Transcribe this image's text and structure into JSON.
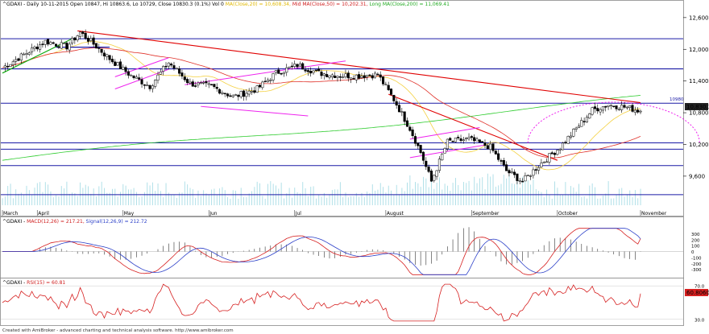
{
  "header": {
    "symbol": "^GDAXI",
    "info": "- Daily 10-11-2015 Open 10847, Hi 10863.6, Lo 10729, Close 10830.3 (0.1%) Vol 0",
    "ma_short": "MA(Close,20) = 10,608.34,",
    "ma_mid": "Mid MA(Close,50) = 10,202.31,",
    "ma_long": "Long MA(Close,200) = 11,069.41"
  },
  "macd_header": {
    "symbol": "^GDAXI - ",
    "macd": "MACD(12,26) = 217.21,",
    "signal": "Signal(12,26,9) = 212.72"
  },
  "rsi_header": {
    "symbol": "^GDAXI - ",
    "rsi": "RSI(15) = 60.81"
  },
  "price_tag": "10,830.3",
  "level_tag": "10980",
  "rsi_tag": "60.8060",
  "footer": "Created with AmiBroker - advanced charting and technical analysis software. http://www.amibroker.com",
  "colors": {
    "up": "#ffffff",
    "down": "#000000",
    "ma20": "#f4d03f",
    "ma50": "#e0322a",
    "ma200": "#2ecc2e",
    "trend_red": "#e00000",
    "channel_magenta": "#ee22ee",
    "support_blue": "#1a1aa6",
    "green_line": "#11aa11",
    "macd": "#2b3fc8",
    "signal": "#d62020",
    "rsi": "#d62020",
    "volume": "#a9dde6"
  },
  "chart_data": [
    {
      "type": "candlestick",
      "title": "^GDAXI - Daily 10-11-2015",
      "ylabel": "",
      "ylim": [
        9050,
        12750
      ],
      "y_ticks": [
        9600,
        10200,
        10800,
        11400,
        12000,
        12600
      ],
      "months": [
        "March",
        "April",
        "May",
        "Jun",
        "Jul",
        "August",
        "September",
        "October",
        "November"
      ],
      "horizontal_levels": [
        12200,
        11630,
        10980,
        10230,
        10110,
        9800,
        9250
      ],
      "series": [
        {
          "name": "MA(Close,20)",
          "value_last": 10608.34
        },
        {
          "name": "Mid MA(Close,50)",
          "value_last": 10202.31
        },
        {
          "name": "Long MA(Close,200)",
          "value_last": 11069.41
        }
      ],
      "last": {
        "open": 10847,
        "high": 10863.6,
        "low": 10729,
        "close": 10830.3
      }
    },
    {
      "type": "line",
      "title": "^GDAXI - MACD(12,26)",
      "ylim": [
        -400,
        400
      ],
      "y_ticks": [
        -300,
        -200,
        -100,
        0,
        100,
        200,
        300
      ],
      "series": [
        {
          "name": "MACD(12,26)",
          "value_last": 217.21
        },
        {
          "name": "Signal(12,26,9)",
          "value_last": 212.72
        }
      ]
    },
    {
      "type": "line",
      "title": "^GDAXI - RSI(15)",
      "ylim": [
        25,
        75
      ],
      "y_ticks": [
        30,
        70
      ],
      "series": [
        {
          "name": "RSI(15)",
          "value_last": 60.81
        }
      ]
    }
  ]
}
